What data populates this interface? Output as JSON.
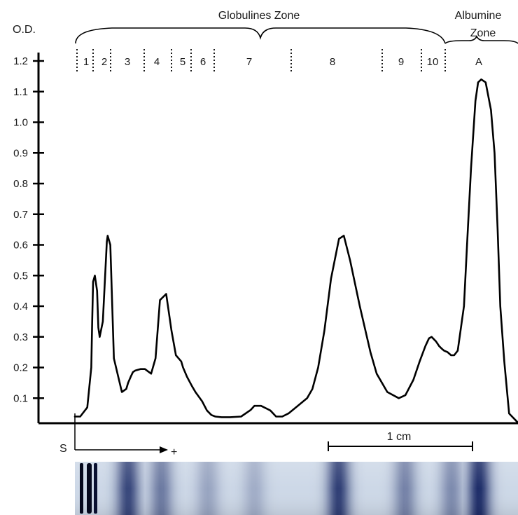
{
  "chart_data": {
    "type": "line",
    "ylabel": "O.D.",
    "ylim": [
      0,
      1.2
    ],
    "yticks": [
      "0.1",
      "0.2",
      "0.3",
      "0.4",
      "0.5",
      "0.6",
      "0.7",
      "0.8",
      "0.9",
      "1.0",
      "1.1",
      "1.2"
    ],
    "zones": [
      {
        "label": "Globulines Zone"
      },
      {
        "label": "Albumine Zone"
      }
    ],
    "fractions": [
      "1",
      "2",
      "3",
      "4",
      "5",
      "6",
      "7",
      "8",
      "9",
      "10",
      "A"
    ],
    "origin_label": "S",
    "direction_label": "+",
    "scale_label": "1 cm",
    "series": [
      {
        "x": [
          0,
          1.2,
          2.8,
          3.7,
          3.9,
          4.1,
          4.5,
          5.0,
          5.3,
          5.6,
          6.3,
          7.0,
          7.2,
          7.4,
          8.0,
          8.8,
          10.6,
          11.6,
          12.0,
          12.6,
          13.1,
          13.6,
          14.8,
          15.8,
          17.2,
          18.2,
          19.2,
          20.6,
          21.8,
          22.8,
          24.0,
          24.4,
          25.3,
          26.4,
          27.2,
          28.7,
          29.8,
          30.8,
          31.7,
          33.1,
          35.0,
          37.5,
          39.7,
          40.5,
          42.0,
          44.1,
          45.4,
          46.8,
          48.2,
          50.3,
          52.4,
          53.6,
          54.9,
          56.3,
          57.8,
          59.6,
          60.7,
          62.1,
          64.3,
          66.7,
          68.1,
          70.5,
          73.1,
          74.6,
          76.4,
          77.8,
          79.1,
          79.9,
          80.5,
          81.5,
          82.2,
          82.9,
          83.3,
          84.1,
          84.9,
          85.6,
          86.4,
          87.8,
          88.5,
          89.4,
          90.4,
          91.0,
          91.7,
          92.7,
          93.9,
          94.7,
          95.4,
          96.0,
          96.9,
          98.0,
          100.0
        ],
        "y": [
          0.04,
          0.04,
          0.07,
          0.2,
          0.35,
          0.48,
          0.5,
          0.45,
          0.33,
          0.3,
          0.35,
          0.55,
          0.61,
          0.63,
          0.6,
          0.23,
          0.12,
          0.13,
          0.15,
          0.17,
          0.185,
          0.19,
          0.195,
          0.195,
          0.18,
          0.23,
          0.42,
          0.44,
          0.32,
          0.24,
          0.22,
          0.2,
          0.17,
          0.14,
          0.12,
          0.09,
          0.06,
          0.045,
          0.04,
          0.038,
          0.038,
          0.04,
          0.062,
          0.075,
          0.075,
          0.06,
          0.04,
          0.04,
          0.05,
          0.075,
          0.1,
          0.13,
          0.2,
          0.32,
          0.49,
          0.62,
          0.63,
          0.55,
          0.4,
          0.25,
          0.18,
          0.12,
          0.1,
          0.11,
          0.16,
          0.22,
          0.27,
          0.295,
          0.3,
          0.285,
          0.27,
          0.26,
          0.255,
          0.25,
          0.24,
          0.24,
          0.255,
          0.4,
          0.6,
          0.85,
          1.07,
          1.13,
          1.14,
          1.13,
          1.04,
          0.9,
          0.65,
          0.4,
          0.22,
          0.05,
          0.02
        ]
      }
    ]
  },
  "gel_strip": {
    "background": "#cdd8e7",
    "band_color": "#1a2a66",
    "origin_color": "#0a1030",
    "bands": [
      {
        "position": 12.0,
        "intensity": 0.85
      },
      {
        "position": 19.5,
        "intensity": 0.55
      },
      {
        "position": 30.0,
        "intensity": 0.3
      },
      {
        "position": 40.5,
        "intensity": 0.25
      },
      {
        "position": 59.5,
        "intensity": 0.9
      },
      {
        "position": 74.5,
        "intensity": 0.5
      },
      {
        "position": 85.0,
        "intensity": 0.45
      },
      {
        "position": 91.2,
        "intensity": 1.0
      }
    ]
  }
}
